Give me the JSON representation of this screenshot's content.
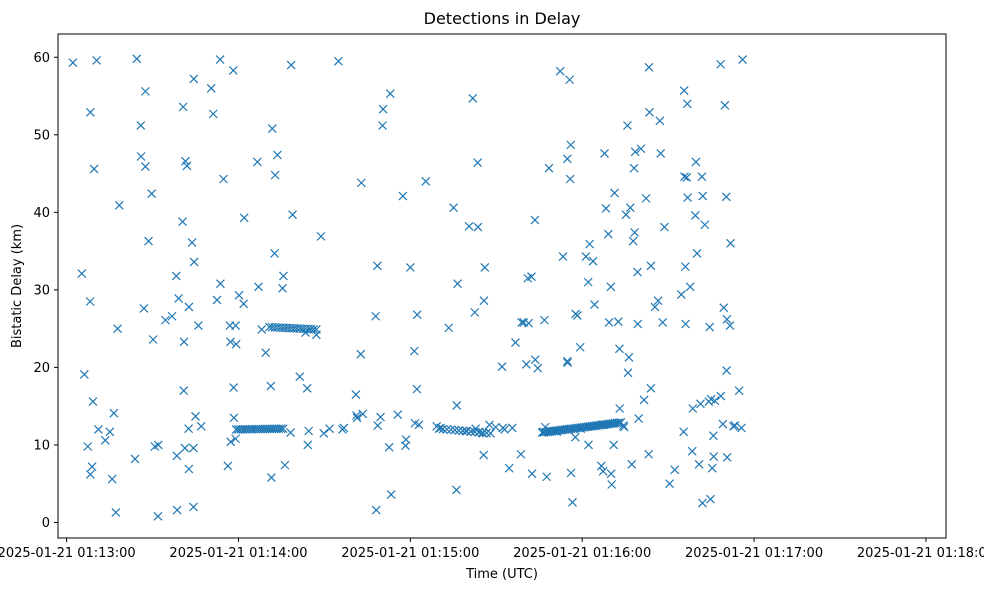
{
  "chart_data": {
    "type": "scatter",
    "title": "Detections in Delay",
    "xlabel": "Time (UTC)",
    "ylabel": "Bistatic Delay (km)",
    "marker": "x",
    "color": "#1f77b4",
    "x_unit": "seconds since 2025-01-21 01:13:00",
    "xlim": [
      -3,
      307
    ],
    "ylim": [
      -2,
      63
    ],
    "xticks": [
      {
        "value": 0,
        "label": "2025-01-21 01:13:00"
      },
      {
        "value": 60,
        "label": "2025-01-21 01:14:00"
      },
      {
        "value": 120,
        "label": "2025-01-21 01:15:00"
      },
      {
        "value": 180,
        "label": "2025-01-21 01:16:00"
      },
      {
        "value": 240,
        "label": "2025-01-21 01:17:00"
      },
      {
        "value": 300,
        "label": "2025-01-21 01:18:00"
      }
    ],
    "yticks": [
      0,
      10,
      20,
      30,
      40,
      50,
      60
    ],
    "points": [
      [
        2.2,
        59.3
      ],
      [
        5.3,
        32.1
      ],
      [
        6.2,
        19.1
      ],
      [
        7.4,
        9.8
      ],
      [
        8.3,
        6.2
      ],
      [
        8.9,
        7.2
      ],
      [
        9.2,
        15.6
      ],
      [
        8.2,
        28.5
      ],
      [
        8.3,
        52.9
      ],
      [
        9.6,
        45.6
      ],
      [
        10.5,
        59.6
      ],
      [
        11.1,
        12.0
      ],
      [
        13.5,
        10.6
      ],
      [
        15.1,
        11.7
      ],
      [
        15.9,
        5.6
      ],
      [
        16.5,
        14.1
      ],
      [
        17.2,
        1.3
      ],
      [
        17.8,
        25.0
      ],
      [
        18.4,
        40.9
      ],
      [
        23.9,
        8.2
      ],
      [
        24.5,
        59.8
      ],
      [
        25.9,
        51.2
      ],
      [
        26.0,
        47.2
      ],
      [
        27.0,
        27.6
      ],
      [
        27.5,
        45.9
      ],
      [
        27.5,
        55.6
      ],
      [
        28.6,
        36.3
      ],
      [
        29.7,
        42.4
      ],
      [
        30.2,
        23.6
      ],
      [
        30.8,
        9.8
      ],
      [
        31.9,
        0.8
      ],
      [
        32.0,
        10.0
      ],
      [
        34.5,
        26.1
      ],
      [
        36.8,
        26.6
      ],
      [
        38.3,
        31.8
      ],
      [
        38.5,
        8.6
      ],
      [
        38.6,
        1.6
      ],
      [
        39.1,
        28.9
      ],
      [
        40.7,
        53.6
      ],
      [
        40.5,
        38.8
      ],
      [
        40.9,
        17.0
      ],
      [
        41.0,
        23.3
      ],
      [
        41.3,
        9.6
      ],
      [
        41.5,
        46.6
      ],
      [
        42.0,
        46.0
      ],
      [
        42.6,
        12.1
      ],
      [
        42.7,
        27.8
      ],
      [
        42.7,
        6.9
      ],
      [
        43.8,
        36.1
      ],
      [
        44.3,
        9.6
      ],
      [
        44.3,
        2.0
      ],
      [
        44.4,
        57.2
      ],
      [
        44.5,
        33.6
      ],
      [
        45.0,
        13.7
      ],
      [
        46.0,
        25.4
      ],
      [
        47.0,
        12.4
      ],
      [
        50.5,
        56.0
      ],
      [
        51.2,
        52.7
      ],
      [
        52.5,
        28.7
      ],
      [
        53.6,
        59.7
      ],
      [
        53.7,
        30.8
      ],
      [
        54.8,
        44.3
      ],
      [
        56.3,
        7.3
      ],
      [
        57.0,
        25.4
      ],
      [
        57.2,
        23.3
      ],
      [
        57.3,
        10.4
      ],
      [
        58.2,
        58.3
      ],
      [
        58.3,
        17.4
      ],
      [
        58.4,
        13.5
      ],
      [
        59.0,
        25.4
      ],
      [
        59.0,
        10.8
      ],
      [
        59.2,
        23.0
      ],
      [
        60.2,
        29.3
      ],
      [
        61.8,
        28.2
      ],
      [
        62.0,
        39.3
      ],
      [
        66.6,
        46.5
      ],
      [
        67.0,
        30.4
      ],
      [
        68.1,
        24.9
      ],
      [
        69.5,
        21.9
      ],
      [
        71.3,
        17.6
      ],
      [
        71.5,
        5.8
      ],
      [
        71.8,
        50.8
      ],
      [
        72.6,
        34.7
      ],
      [
        72.8,
        44.8
      ],
      [
        73.6,
        47.4
      ],
      [
        75.7,
        31.8
      ],
      [
        75.4,
        30.2
      ],
      [
        76.2,
        7.4
      ],
      [
        78.2,
        11.6
      ],
      [
        78.4,
        59.0
      ],
      [
        78.9,
        39.7
      ],
      [
        81.4,
        18.8
      ],
      [
        83.4,
        24.5
      ],
      [
        84.0,
        17.3
      ],
      [
        84.2,
        10.0
      ],
      [
        84.5,
        11.8
      ],
      [
        87.2,
        24.2
      ],
      [
        88.8,
        36.9
      ],
      [
        89.8,
        11.5
      ],
      [
        91.8,
        12.1
      ],
      [
        94.9,
        59.5
      ],
      [
        96.3,
        12.0
      ],
      [
        96.8,
        12.2
      ],
      [
        101.0,
        16.5
      ],
      [
        101.2,
        13.8
      ],
      [
        101.4,
        13.5
      ],
      [
        102.7,
        21.7
      ],
      [
        102.9,
        43.8
      ],
      [
        103.4,
        14.0
      ],
      [
        107.9,
        26.6
      ],
      [
        108.5,
        33.1
      ],
      [
        108.1,
        1.6
      ],
      [
        108.6,
        12.5
      ],
      [
        109.6,
        13.6
      ],
      [
        110.3,
        51.2
      ],
      [
        110.5,
        53.3
      ],
      [
        112.6,
        9.7
      ],
      [
        113.3,
        3.6
      ],
      [
        113.0,
        55.3
      ],
      [
        115.6,
        13.9
      ],
      [
        117.4,
        42.1
      ],
      [
        118.5,
        10.7
      ],
      [
        118.3,
        9.9
      ],
      [
        120.0,
        32.9
      ],
      [
        121.4,
        22.1
      ],
      [
        121.6,
        12.8
      ],
      [
        122.4,
        26.8
      ],
      [
        122.3,
        17.2
      ],
      [
        123.0,
        12.6
      ],
      [
        125.4,
        44.0
      ],
      [
        129.2,
        12.4
      ],
      [
        130.6,
        12.2
      ],
      [
        133.4,
        25.1
      ],
      [
        135.1,
        40.6
      ],
      [
        136.1,
        4.2
      ],
      [
        136.2,
        15.1
      ],
      [
        136.5,
        30.8
      ],
      [
        139.4,
        11.8
      ],
      [
        140.5,
        38.2
      ],
      [
        141.8,
        54.7
      ],
      [
        142.5,
        27.1
      ],
      [
        142.8,
        12.1
      ],
      [
        143.6,
        38.1
      ],
      [
        143.5,
        46.4
      ],
      [
        144.1,
        11.7
      ],
      [
        145.3,
        11.5
      ],
      [
        145.6,
        8.7
      ],
      [
        145.7,
        28.6
      ],
      [
        146.0,
        32.9
      ],
      [
        147.6,
        12.6
      ],
      [
        149.8,
        12.3
      ],
      [
        152.0,
        20.1
      ],
      [
        152.3,
        12.2
      ],
      [
        152.9,
        12.0
      ],
      [
        154.5,
        7.0
      ],
      [
        155.6,
        12.2
      ],
      [
        156.7,
        23.2
      ],
      [
        158.6,
        8.8
      ],
      [
        158.9,
        25.8
      ],
      [
        159.6,
        25.8
      ],
      [
        160.5,
        20.4
      ],
      [
        161.0,
        31.5
      ],
      [
        161.3,
        25.7
      ],
      [
        162.3,
        31.7
      ],
      [
        162.5,
        6.3
      ],
      [
        163.5,
        39.0
      ],
      [
        163.6,
        21.0
      ],
      [
        164.5,
        19.9
      ],
      [
        166.8,
        26.1
      ],
      [
        166.4,
        11.7
      ],
      [
        167.1,
        12.3
      ],
      [
        167.6,
        5.9
      ],
      [
        168.4,
        45.7
      ],
      [
        168.7,
        11.8
      ],
      [
        170.1,
        11.8
      ],
      [
        171.1,
        11.7
      ],
      [
        172.3,
        58.2
      ],
      [
        173.3,
        34.3
      ],
      [
        174.8,
        46.9
      ],
      [
        174.8,
        20.8
      ],
      [
        174.9,
        20.6
      ],
      [
        175.6,
        57.1
      ],
      [
        175.8,
        44.3
      ],
      [
        176.0,
        48.7
      ],
      [
        176.1,
        6.4
      ],
      [
        176.6,
        2.6
      ],
      [
        177.6,
        11.0
      ],
      [
        177.7,
        26.9
      ],
      [
        178.3,
        26.7
      ],
      [
        179.3,
        22.6
      ],
      [
        179.5,
        12.1
      ],
      [
        181.3,
        34.3
      ],
      [
        182.1,
        31.0
      ],
      [
        182.2,
        10.0
      ],
      [
        182.6,
        35.9
      ],
      [
        183.8,
        33.7
      ],
      [
        184.3,
        28.1
      ],
      [
        186.7,
        7.3
      ],
      [
        187.2,
        12.6
      ],
      [
        187.3,
        6.6
      ],
      [
        187.8,
        47.6
      ],
      [
        188.3,
        40.5
      ],
      [
        189.1,
        37.2
      ],
      [
        189.4,
        25.8
      ],
      [
        190.0,
        30.4
      ],
      [
        190.1,
        6.3
      ],
      [
        190.3,
        4.9
      ],
      [
        191.0,
        10.0
      ],
      [
        191.3,
        42.5
      ],
      [
        192.6,
        25.9
      ],
      [
        193.0,
        22.4
      ],
      [
        193.1,
        14.7
      ],
      [
        194.4,
        12.5
      ],
      [
        194.6,
        12.3
      ],
      [
        195.3,
        39.7
      ],
      [
        195.8,
        51.2
      ],
      [
        196.0,
        19.3
      ],
      [
        196.3,
        21.3
      ],
      [
        196.8,
        40.6
      ],
      [
        197.3,
        7.5
      ],
      [
        197.8,
        36.3
      ],
      [
        198.1,
        45.7
      ],
      [
        198.3,
        37.4
      ],
      [
        198.5,
        47.8
      ],
      [
        199.3,
        32.3
      ],
      [
        199.4,
        25.6
      ],
      [
        199.7,
        13.4
      ],
      [
        200.5,
        48.2
      ],
      [
        201.6,
        15.8
      ],
      [
        202.3,
        41.8
      ],
      [
        203.2,
        8.8
      ],
      [
        203.3,
        58.7
      ],
      [
        203.5,
        52.9
      ],
      [
        204.0,
        17.3
      ],
      [
        204.0,
        33.1
      ],
      [
        205.4,
        27.8
      ],
      [
        206.5,
        28.6
      ],
      [
        207.1,
        51.8
      ],
      [
        207.4,
        47.6
      ],
      [
        208.1,
        25.8
      ],
      [
        208.7,
        38.1
      ],
      [
        210.5,
        5.0
      ],
      [
        212.3,
        6.8
      ],
      [
        214.6,
        29.4
      ],
      [
        215.4,
        11.7
      ],
      [
        215.6,
        55.7
      ],
      [
        215.7,
        44.6
      ],
      [
        216.0,
        33.0
      ],
      [
        216.1,
        25.6
      ],
      [
        216.5,
        44.5
      ],
      [
        216.7,
        54.0
      ],
      [
        216.8,
        41.9
      ],
      [
        217.7,
        30.4
      ],
      [
        218.4,
        9.2
      ],
      [
        218.6,
        14.7
      ],
      [
        219.5,
        39.6
      ],
      [
        219.7,
        46.5
      ],
      [
        220.1,
        34.7
      ],
      [
        220.8,
        7.5
      ],
      [
        221.3,
        15.3
      ],
      [
        221.8,
        44.6
      ],
      [
        222.0,
        2.5
      ],
      [
        222.1,
        42.1
      ],
      [
        222.8,
        38.4
      ],
      [
        224.2,
        15.6
      ],
      [
        224.5,
        25.2
      ],
      [
        224.8,
        3.0
      ],
      [
        225.0,
        15.9
      ],
      [
        225.4,
        7.0
      ],
      [
        225.8,
        11.2
      ],
      [
        225.9,
        8.5
      ],
      [
        226.3,
        15.7
      ],
      [
        228.3,
        59.1
      ],
      [
        228.4,
        16.3
      ],
      [
        229.1,
        12.7
      ],
      [
        229.4,
        27.7
      ],
      [
        229.8,
        53.8
      ],
      [
        230.3,
        42.0
      ],
      [
        230.4,
        19.6
      ],
      [
        230.5,
        26.2
      ],
      [
        230.6,
        8.4
      ],
      [
        231.6,
        25.4
      ],
      [
        231.8,
        36.0
      ],
      [
        232.8,
        12.4
      ],
      [
        233.3,
        12.5
      ],
      [
        234.8,
        17.0
      ],
      [
        235.6,
        12.2
      ],
      [
        236.0,
        59.7
      ]
    ],
    "clusters": [
      {
        "x_start": 59.2,
        "x_end": 75.6,
        "y_start": 12.0,
        "y_end": 12.1,
        "n": 22
      },
      {
        "x_start": 70.8,
        "x_end": 87.2,
        "y_start": 25.2,
        "y_end": 24.9,
        "n": 18
      },
      {
        "x_start": 130.0,
        "x_end": 148.0,
        "y_start": 12.1,
        "y_end": 11.5,
        "n": 14
      },
      {
        "x_start": 166.0,
        "x_end": 193.5,
        "y_start": 11.6,
        "y_end": 12.9,
        "n": 42
      }
    ]
  }
}
